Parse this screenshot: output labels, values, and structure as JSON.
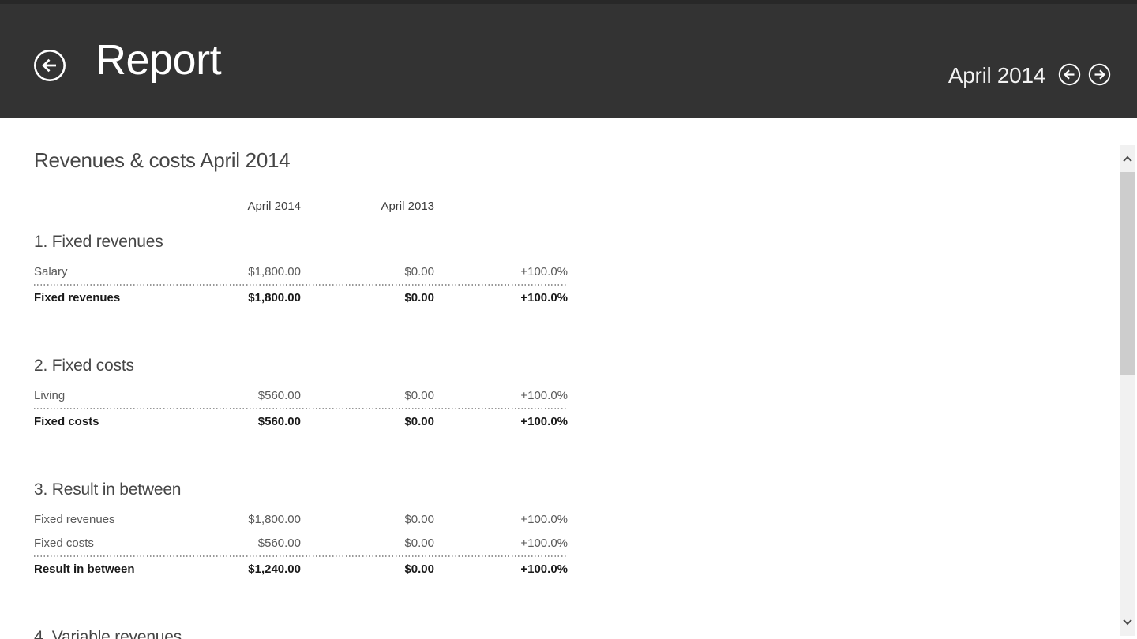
{
  "app": {
    "header": {
      "title": "Report",
      "period_label": "April 2014",
      "icons": {
        "back": "arrow-left-circle-icon",
        "previous_period": "arrow-left-circle-icon",
        "next_period": "arrow-right-circle-icon"
      }
    },
    "scrollbar": {
      "up_icon": "chevron-up-icon",
      "down_icon": "chevron-down-icon"
    }
  },
  "report": {
    "title": "Revenues & costs April 2014",
    "column_headers": [
      "April 2014",
      "April 2013"
    ],
    "sections": [
      {
        "heading": "1. Fixed revenues",
        "rows": [
          {
            "label": "Salary",
            "current": "$1,800.00",
            "previous": "$0.00",
            "change": "+100.0%"
          }
        ],
        "total": {
          "label": "Fixed revenues",
          "current": "$1,800.00",
          "previous": "$0.00",
          "change": "+100.0%"
        }
      },
      {
        "heading": "2. Fixed costs",
        "rows": [
          {
            "label": "Living",
            "current": "$560.00",
            "previous": "$0.00",
            "change": "+100.0%"
          }
        ],
        "total": {
          "label": "Fixed costs",
          "current": "$560.00",
          "previous": "$0.00",
          "change": "+100.0%"
        }
      },
      {
        "heading": "3. Result in between",
        "rows": [
          {
            "label": "Fixed revenues",
            "current": "$1,800.00",
            "previous": "$0.00",
            "change": "+100.0%"
          },
          {
            "label": "Fixed costs",
            "current": "$560.00",
            "previous": "$0.00",
            "change": "+100.0%"
          }
        ],
        "total": {
          "label": "Result in between",
          "current": "$1,240.00",
          "previous": "$0.00",
          "change": "+100.0%"
        }
      },
      {
        "heading": "4. Variable revenues",
        "rows": [],
        "total": null
      }
    ]
  },
  "colors": {
    "header_background": "#333333",
    "header_text": "#ffffff",
    "body_background": "#ffffff",
    "heading_text": "#464646",
    "row_text": "#595959",
    "total_text": "#1a1a1a",
    "divider": "#979797",
    "scrollbar_track": "#f1f1f1",
    "scrollbar_thumb": "#cdcdcd",
    "scrollbar_arrow": "#4d4d4d"
  }
}
